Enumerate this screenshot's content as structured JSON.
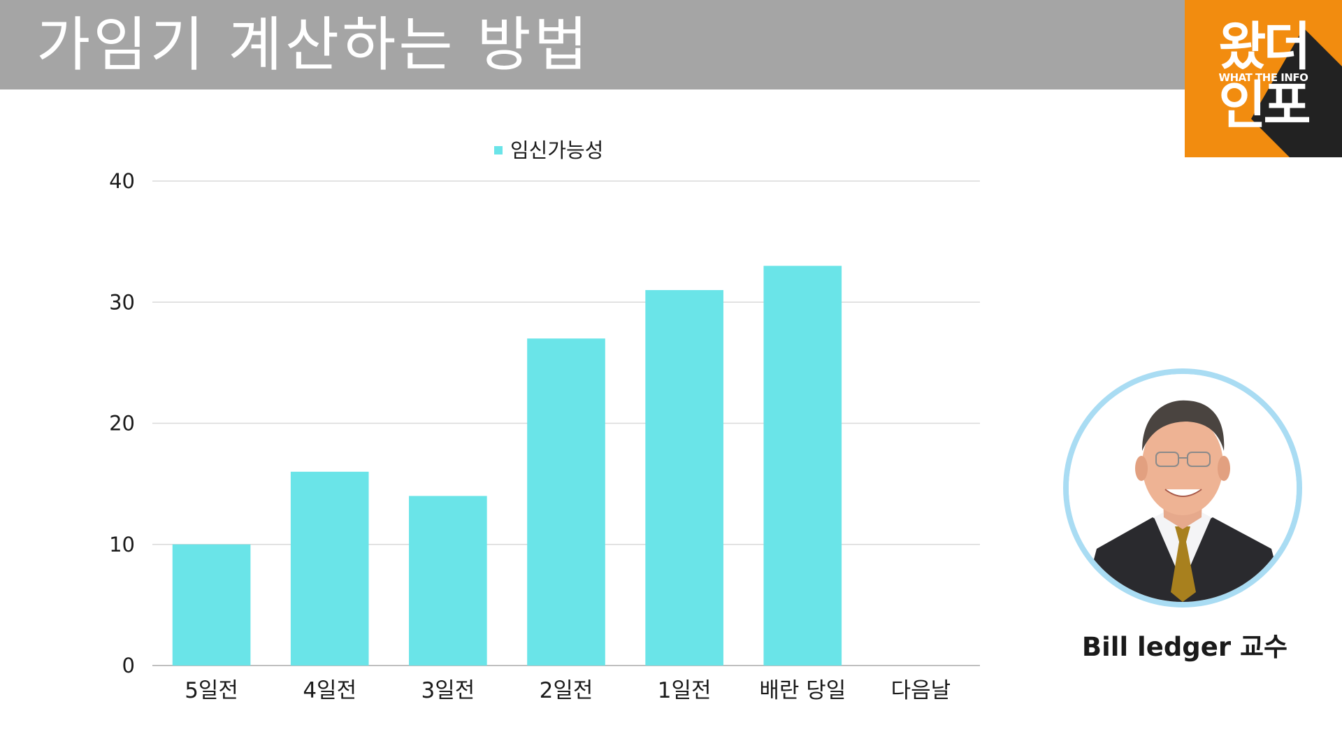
{
  "page_title": "가임기 계산하는 방법",
  "logo": {
    "top_text": "왔더",
    "sub_text": "WHAT THE INFO",
    "bottom_text": "인포",
    "color": "#f28c0f"
  },
  "portrait_caption": "Bill ledger 교수",
  "chart_data": {
    "type": "bar",
    "categories": [
      "5일전",
      "4일전",
      "3일전",
      "2일전",
      "1일전",
      "배란 당일",
      "다음날"
    ],
    "series": [
      {
        "name": "임신가능성",
        "values": [
          10,
          16,
          14,
          27,
          31,
          33,
          0
        ],
        "color": "#6ae4e8"
      }
    ],
    "ylim": [
      0,
      40
    ],
    "yticks": [
      0,
      10,
      20,
      30,
      40
    ],
    "grid": true,
    "legend_position": "top-center",
    "title": "",
    "xlabel": "",
    "ylabel": ""
  }
}
